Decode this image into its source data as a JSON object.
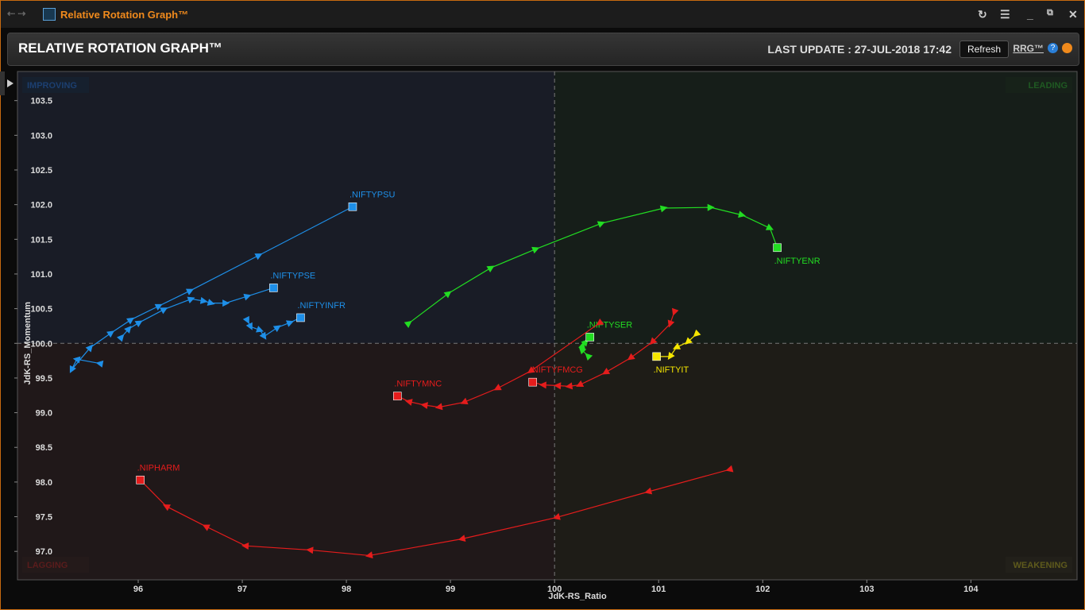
{
  "window": {
    "title": "Relative Rotation Graph™"
  },
  "header": {
    "title": "RELATIVE ROTATION GRAPH™",
    "last_update": "LAST UPDATE : 27-JUL-2018 17:42",
    "refresh": "Refresh",
    "link": "RRG™"
  },
  "chart_data": {
    "type": "scatter",
    "x_label": "JdK-RS_Ratio",
    "y_label": "JdK-RS_Momentum",
    "quadrants": {
      "top_left": "IMPROVING",
      "top_right": "LEADING",
      "bottom_left": "LAGGING",
      "bottom_right": "WEAKENING"
    },
    "crosshair": {
      "x": 100,
      "y": 100
    },
    "xlim": [
      94.84,
      105.02
    ],
    "ylim": [
      96.59,
      103.92
    ],
    "xticks": [
      96,
      97,
      98,
      99,
      100,
      101,
      102,
      103,
      104
    ],
    "yticks": [
      {
        "value": 97,
        "label": "97.0"
      },
      97.5,
      {
        "value": 98,
        "label": "98.0"
      },
      98.5,
      {
        "value": 99,
        "label": "99.0"
      },
      99.5,
      {
        "value": 100,
        "label": "100.0"
      },
      100.5,
      {
        "value": 101,
        "label": "101.0"
      },
      101.5,
      {
        "value": 102,
        "label": "102.0"
      },
      102.5,
      {
        "value": 103,
        "label": "103.0"
      },
      103.5
    ],
    "series": [
      {
        "name": ".NIFTYPSU",
        "color": "#1e8fe8",
        "x": [
          95.63,
          95.41,
          95.36,
          95.54,
          95.74,
          95.93,
          96.2,
          96.5,
          97.16,
          98.06
        ],
        "y": [
          99.71,
          99.77,
          99.62,
          99.94,
          100.15,
          100.34,
          100.54,
          100.76,
          101.27,
          101.97
        ]
      },
      {
        "name": ".NIFTYPSE",
        "color": "#1e8fe8",
        "x": [
          95.84,
          95.91,
          96.01,
          96.25,
          96.51,
          96.63,
          96.7,
          96.84,
          97.05,
          97.3
        ],
        "y": [
          100.09,
          100.21,
          100.3,
          100.49,
          100.64,
          100.61,
          100.58,
          100.58,
          100.68,
          100.8
        ]
      },
      {
        "name": ".NIFTYINFR",
        "color": "#1e8fe8",
        "x": [
          97.05,
          97.08,
          97.17,
          97.21,
          97.34,
          97.46,
          97.56
        ],
        "y": [
          100.33,
          100.24,
          100.19,
          100.1,
          100.23,
          100.3,
          100.37
        ]
      },
      {
        "name": ".NIFTYENR",
        "color": "#22dd22",
        "x": [
          98.6,
          98.98,
          99.39,
          99.82,
          100.45,
          101.05,
          101.5,
          101.8,
          102.07,
          102.14
        ],
        "y": [
          100.29,
          100.72,
          101.09,
          101.36,
          101.73,
          101.95,
          101.96,
          101.85,
          101.66,
          101.38
        ]
      },
      {
        "name": ".NIFTYSER",
        "color": "#22dd22",
        "x": [
          100.32,
          100.26,
          100.27,
          100.3,
          100.34
        ],
        "y": [
          99.82,
          99.91,
          99.97,
          100.02,
          100.09
        ]
      },
      {
        "name": ".NIFTYIT",
        "color": "#f5e600",
        "x": [
          101.36,
          101.28,
          101.17,
          101.11,
          100.98
        ],
        "y": [
          100.13,
          100.02,
          99.94,
          99.81,
          99.81
        ]
      },
      {
        "name": ".NIFTYFMCG",
        "color": "#e51c1c",
        "x": [
          101.15,
          101.11,
          100.94,
          100.73,
          100.49,
          100.24,
          100.14,
          100.03,
          99.89,
          99.79
        ],
        "y": [
          100.45,
          100.28,
          100.02,
          99.79,
          99.58,
          99.4,
          99.38,
          99.39,
          99.4,
          99.44
        ]
      },
      {
        "name": ".NIFTYMNC",
        "color": "#e51c1c",
        "x": [
          100.43,
          99.77,
          99.45,
          99.13,
          98.89,
          98.75,
          98.6,
          98.49
        ],
        "y": [
          100.29,
          99.6,
          99.35,
          99.15,
          99.08,
          99.11,
          99.16,
          99.24
        ]
      },
      {
        "name": ".NIPHARM",
        "color": "#e51c1c",
        "x": [
          101.68,
          100.9,
          100.02,
          99.11,
          98.22,
          97.65,
          97.03,
          96.65,
          96.27,
          96.02
        ],
        "y": [
          98.18,
          97.86,
          97.49,
          97.18,
          96.94,
          97.02,
          97.08,
          97.36,
          97.65,
          98.03
        ]
      }
    ]
  }
}
